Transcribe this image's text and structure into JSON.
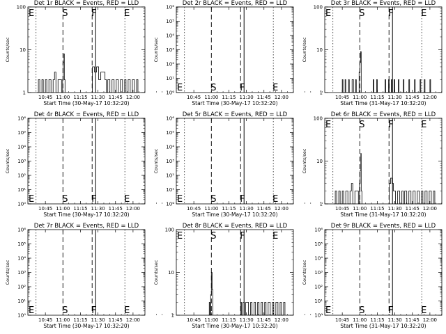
{
  "colors": {
    "axis": "#000000",
    "events": "#000000",
    "lld": "#ff0000",
    "background": "#ffffff"
  },
  "chart_data": [
    {
      "type": "line",
      "title": "Det 1r BLACK = Events, RED = LLD",
      "xlabel": "Start Time (30-May-17 10:32:20)",
      "ylabel": "Counts/sec",
      "yscale": "log",
      "ylim": [
        1,
        100
      ],
      "yticks": [
        "1",
        "10",
        "100"
      ],
      "xticks": [
        "10:45",
        "11:00",
        "11:15",
        "11:30",
        "11:45",
        "12:00"
      ],
      "markers": [
        {
          "label": "E",
          "time": "10:37"
        },
        {
          "label": "S",
          "time": "11:00"
        },
        {
          "label": "F",
          "time": "11:25"
        },
        {
          "label": "E",
          "time": "11:53"
        }
      ],
      "marker_labels_at": "top",
      "series": [
        {
          "values": [
            [
              10.63,
              1.0
            ],
            [
              10.65,
              2.0
            ],
            [
              10.67,
              1.0
            ],
            [
              10.7,
              2.0
            ],
            [
              10.72,
              1.0
            ],
            [
              10.75,
              2.0
            ],
            [
              10.77,
              1.0
            ],
            [
              10.8,
              2.0
            ],
            [
              10.83,
              1.0
            ],
            [
              10.86,
              2.0
            ],
            [
              10.88,
              3.0
            ],
            [
              10.9,
              1.0
            ],
            [
              10.93,
              2.0
            ],
            [
              10.96,
              2.0
            ],
            [
              10.98,
              1.0
            ],
            [
              10.995,
              2.0
            ],
            [
              11.005,
              5.0
            ],
            [
              11.015,
              8.0
            ],
            [
              11.02,
              2.0
            ],
            [
              11.03,
              1.0
            ],
            [
              11.41,
              1.0
            ],
            [
              11.42,
              4.0
            ],
            [
              11.45,
              3.0
            ],
            [
              11.48,
              4.0
            ],
            [
              11.51,
              2.0
            ],
            [
              11.54,
              3.0
            ],
            [
              11.57,
              3.0
            ],
            [
              11.6,
              2.0
            ],
            [
              11.62,
              1.0
            ],
            [
              11.64,
              2.0
            ],
            [
              11.67,
              1.0
            ],
            [
              11.7,
              2.0
            ],
            [
              11.73,
              1.0
            ],
            [
              11.76,
              2.0
            ],
            [
              11.79,
              1.0
            ],
            [
              11.82,
              2.0
            ],
            [
              11.85,
              1.0
            ],
            [
              11.88,
              2.0
            ],
            [
              11.9,
              1.0
            ],
            [
              11.93,
              2.0
            ],
            [
              11.96,
              1.0
            ],
            [
              11.99,
              2.0
            ],
            [
              12.02,
              1.0
            ],
            [
              12.05,
              2.0
            ],
            [
              12.07,
              1.0
            ]
          ]
        }
      ]
    },
    {
      "type": "line",
      "title": "Det 2r BLACK = Events, RED = LLD",
      "xlabel": "Start Time (30-May-17 10:32:20)",
      "ylabel": "Counts/sec",
      "yscale": "log",
      "ylim": [
        1,
        1000000
      ],
      "yticks": [
        "10⁰",
        "10¹",
        "10²",
        "10³",
        "10⁴",
        "10⁵",
        "10⁶"
      ],
      "xticks": [
        "10:45",
        "11:00",
        "11:15",
        "11:30",
        "11:45",
        "12:00"
      ],
      "markers": [
        {
          "label": "E",
          "time": "10:37"
        },
        {
          "label": "S",
          "time": "11:00"
        },
        {
          "label": "F",
          "time": "11:25"
        },
        {
          "label": "E",
          "time": "11:53"
        }
      ],
      "marker_labels_at": "bottom",
      "series": []
    },
    {
      "type": "line",
      "title": "Det 3r BLACK = Events, RED = LLD",
      "xlabel": "Start Time (31-May-17 10:32:20)",
      "ylabel": "Counts/sec",
      "yscale": "log",
      "ylim": [
        1,
        100
      ],
      "yticks": [
        "1",
        "10",
        "100"
      ],
      "xticks": [
        "10:45",
        "11:00",
        "11:15",
        "11:30",
        "11:45",
        "12:00"
      ],
      "markers": [
        {
          "label": "E",
          "time": "10:37"
        },
        {
          "label": "S",
          "time": "11:00"
        },
        {
          "label": "F",
          "time": "11:25"
        },
        {
          "label": "E",
          "time": "11:53"
        }
      ],
      "marker_labels_at": "top",
      "series": [
        {
          "values": [
            [
              10.74,
              1.0
            ],
            [
              10.75,
              2.0
            ],
            [
              10.76,
              1.0
            ],
            [
              10.79,
              2.0
            ],
            [
              10.8,
              1.0
            ],
            [
              10.84,
              2.0
            ],
            [
              10.85,
              1.0
            ],
            [
              10.89,
              2.0
            ],
            [
              10.91,
              1.0
            ],
            [
              10.94,
              2.0
            ],
            [
              10.95,
              1.0
            ],
            [
              10.99,
              3.0
            ],
            [
              11.0,
              5.0
            ],
            [
              11.01,
              9.0
            ],
            [
              11.02,
              1.0
            ],
            [
              11.18,
              1.0
            ],
            [
              11.19,
              2.0
            ],
            [
              11.2,
              1.0
            ],
            [
              11.24,
              2.0
            ],
            [
              11.25,
              1.0
            ],
            [
              11.35,
              1.0
            ],
            [
              11.36,
              2.0
            ],
            [
              11.37,
              1.0
            ],
            [
              11.41,
              2.0
            ],
            [
              11.42,
              1.0
            ],
            [
              11.45,
              2.0
            ],
            [
              11.46,
              1.0
            ],
            [
              11.49,
              2.0
            ],
            [
              11.5,
              1.0
            ],
            [
              11.55,
              2.0
            ],
            [
              11.56,
              1.0
            ],
            [
              11.62,
              2.0
            ],
            [
              11.63,
              1.0
            ],
            [
              11.7,
              2.0
            ],
            [
              11.71,
              1.0
            ],
            [
              11.78,
              2.0
            ],
            [
              11.79,
              1.0
            ],
            [
              11.86,
              2.0
            ],
            [
              11.87,
              1.0
            ],
            [
              11.92,
              2.0
            ],
            [
              11.93,
              1.0
            ],
            [
              12.0,
              2.0
            ],
            [
              12.01,
              1.0
            ]
          ]
        }
      ]
    },
    {
      "type": "line",
      "title": "Det 4r BLACK = Events, RED = LLD",
      "xlabel": "Start Time (30-May-17 10:32:20)",
      "ylabel": "Counts/sec",
      "yscale": "log",
      "ylim": [
        1,
        1000000
      ],
      "yticks": [
        "10⁰",
        "10¹",
        "10²",
        "10³",
        "10⁴",
        "10⁵",
        "10⁶"
      ],
      "xticks": [
        "10:45",
        "11:00",
        "11:15",
        "11:30",
        "11:45",
        "12:00"
      ],
      "markers": [
        {
          "label": "E",
          "time": "10:37"
        },
        {
          "label": "S",
          "time": "11:00"
        },
        {
          "label": "F",
          "time": "11:25"
        },
        {
          "label": "E",
          "time": "11:53"
        }
      ],
      "marker_labels_at": "bottom",
      "series": []
    },
    {
      "type": "line",
      "title": "Det 5r BLACK = Events, RED = LLD",
      "xlabel": "Start Time (30-May-17 10:32:20)",
      "ylabel": "Counts/sec",
      "yscale": "log",
      "ylim": [
        1,
        1000000
      ],
      "yticks": [
        "10⁰",
        "10¹",
        "10²",
        "10³",
        "10⁴",
        "10⁵",
        "10⁶"
      ],
      "xticks": [
        "10:45",
        "11:00",
        "11:15",
        "11:30",
        "11:45",
        "12:00"
      ],
      "markers": [
        {
          "label": "E",
          "time": "10:37"
        },
        {
          "label": "S",
          "time": "11:00"
        },
        {
          "label": "F",
          "time": "11:25"
        },
        {
          "label": "E",
          "time": "11:53"
        }
      ],
      "marker_labels_at": "bottom",
      "series": []
    },
    {
      "type": "line",
      "title": "Det 6r BLACK = Events, RED = LLD",
      "xlabel": "Start Time (31-May-17 10:32:20)",
      "ylabel": "Counts/sec",
      "yscale": "log",
      "ylim": [
        1,
        100
      ],
      "yticks": [
        "1",
        "10",
        "100"
      ],
      "xticks": [
        "10:45",
        "11:00",
        "11:15",
        "11:30",
        "11:45",
        "12:00"
      ],
      "markers": [
        {
          "label": "E",
          "time": "10:37"
        },
        {
          "label": "S",
          "time": "11:00"
        },
        {
          "label": "F",
          "time": "11:25"
        },
        {
          "label": "E",
          "time": "11:53"
        }
      ],
      "marker_labels_at": "top",
      "series": [
        {
          "values": [
            [
              10.63,
              1.0
            ],
            [
              10.65,
              2.0
            ],
            [
              10.67,
              1.0
            ],
            [
              10.7,
              2.0
            ],
            [
              10.72,
              1.0
            ],
            [
              10.75,
              2.0
            ],
            [
              10.77,
              1.0
            ],
            [
              10.8,
              2.0
            ],
            [
              10.83,
              1.0
            ],
            [
              10.86,
              2.0
            ],
            [
              10.88,
              3.0
            ],
            [
              10.9,
              1.0
            ],
            [
              10.93,
              2.0
            ],
            [
              10.96,
              2.0
            ],
            [
              10.98,
              1.0
            ],
            [
              10.995,
              3.0
            ],
            [
              11.005,
              6.0
            ],
            [
              11.015,
              15.0
            ],
            [
              11.02,
              2.0
            ],
            [
              11.03,
              1.0
            ],
            [
              11.41,
              1.0
            ],
            [
              11.42,
              3.0
            ],
            [
              11.44,
              4.0
            ],
            [
              11.46,
              3.0
            ],
            [
              11.48,
              2.0
            ],
            [
              11.51,
              1.0
            ],
            [
              11.54,
              2.0
            ],
            [
              11.57,
              1.0
            ],
            [
              11.6,
              2.0
            ],
            [
              11.62,
              1.0
            ],
            [
              11.64,
              2.0
            ],
            [
              11.67,
              1.0
            ],
            [
              11.7,
              2.0
            ],
            [
              11.73,
              1.0
            ],
            [
              11.76,
              2.0
            ],
            [
              11.79,
              1.0
            ],
            [
              11.82,
              2.0
            ],
            [
              11.85,
              1.0
            ],
            [
              11.88,
              2.0
            ],
            [
              11.9,
              1.0
            ],
            [
              11.93,
              2.0
            ],
            [
              11.96,
              1.0
            ],
            [
              11.99,
              2.0
            ],
            [
              12.02,
              1.0
            ],
            [
              12.05,
              2.0
            ],
            [
              12.07,
              1.0
            ]
          ]
        }
      ]
    },
    {
      "type": "line",
      "title": "Det 7r BLACK = Events, RED = LLD",
      "xlabel": "Start Time (30-May-17 10:32:20)",
      "ylabel": "Counts/sec",
      "yscale": "log",
      "ylim": [
        1,
        1000000
      ],
      "yticks": [
        "10⁰",
        "10¹",
        "10²",
        "10³",
        "10⁴",
        "10⁵",
        "10⁶"
      ],
      "xticks": [
        "10:45",
        "11:00",
        "11:15",
        "11:30",
        "11:45",
        "12:00"
      ],
      "markers": [
        {
          "label": "E",
          "time": "10:37"
        },
        {
          "label": "S",
          "time": "11:00"
        },
        {
          "label": "F",
          "time": "11:25"
        },
        {
          "label": "E",
          "time": "11:53"
        }
      ],
      "marker_labels_at": "bottom",
      "series": []
    },
    {
      "type": "line",
      "title": "Det 8r BLACK = Events, RED = LLD",
      "xlabel": "Start Time (30-May-17 10:32:20)",
      "ylabel": "Counts/sec",
      "yscale": "log",
      "ylim": [
        1,
        100
      ],
      "yticks": [
        "1",
        "10",
        "100"
      ],
      "xticks": [
        "10:45",
        "11:00",
        "11:15",
        "11:30",
        "11:45",
        "12:00"
      ],
      "markers": [
        {
          "label": "E",
          "time": "10:37"
        },
        {
          "label": "S",
          "time": "11:00"
        },
        {
          "label": "F",
          "time": "11:25"
        },
        {
          "label": "E",
          "time": "11:53"
        }
      ],
      "marker_labels_at": "top",
      "series": [
        {
          "values": [
            [
              10.96,
              1.0
            ],
            [
              10.97,
              2.0
            ],
            [
              10.98,
              1.0
            ],
            [
              10.99,
              3.0
            ],
            [
              11.0,
              10.0
            ],
            [
              11.01,
              4.0
            ],
            [
              11.02,
              1.0
            ],
            [
              11.41,
              1.0
            ],
            [
              11.42,
              2.0
            ],
            [
              11.43,
              1.0
            ],
            [
              11.45,
              2.0
            ],
            [
              11.47,
              1.0
            ],
            [
              11.49,
              2.0
            ],
            [
              11.51,
              2.0
            ],
            [
              11.53,
              1.0
            ],
            [
              11.56,
              2.0
            ],
            [
              11.58,
              1.0
            ],
            [
              11.61,
              2.0
            ],
            [
              11.63,
              1.0
            ],
            [
              11.66,
              2.0
            ],
            [
              11.68,
              1.0
            ],
            [
              11.71,
              2.0
            ],
            [
              11.73,
              1.0
            ],
            [
              11.76,
              2.0
            ],
            [
              11.78,
              1.0
            ],
            [
              11.81,
              2.0
            ],
            [
              11.84,
              1.0
            ],
            [
              11.87,
              2.0
            ],
            [
              11.89,
              1.0
            ],
            [
              11.92,
              2.0
            ],
            [
              11.95,
              1.0
            ],
            [
              11.98,
              2.0
            ],
            [
              12.0,
              1.0
            ],
            [
              12.03,
              2.0
            ],
            [
              12.05,
              1.0
            ]
          ]
        }
      ]
    },
    {
      "type": "line",
      "title": "Det 9r BLACK = Events, RED = LLD",
      "xlabel": "Start Time (31-May-17 10:32:20)",
      "ylabel": "Counts/sec",
      "yscale": "log",
      "ylim": [
        1,
        1000000
      ],
      "yticks": [
        "10⁰",
        "10¹",
        "10²",
        "10³",
        "10⁴",
        "10⁵",
        "10⁶"
      ],
      "xticks": [
        "10:45",
        "11:00",
        "11:15",
        "11:30",
        "11:45",
        "12:00"
      ],
      "markers": [
        {
          "label": "E",
          "time": "10:37"
        },
        {
          "label": "S",
          "time": "11:00"
        },
        {
          "label": "F",
          "time": "11:25"
        },
        {
          "label": "E",
          "time": "11:53"
        }
      ],
      "marker_labels_at": "bottom",
      "series": []
    }
  ]
}
